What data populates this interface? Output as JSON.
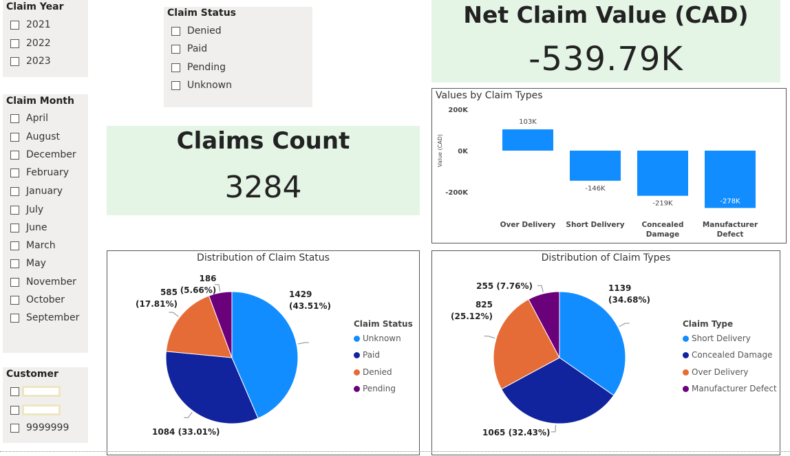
{
  "slicers": {
    "year": {
      "title": "Claim Year",
      "options": [
        "2021",
        "2022",
        "2023"
      ]
    },
    "status": {
      "title": "Claim Status",
      "options": [
        "Denied",
        "Paid",
        "Pending",
        "Unknown"
      ]
    },
    "month": {
      "title": "Claim Month",
      "options": [
        "April",
        "August",
        "December",
        "February",
        "January",
        "July",
        "June",
        "March",
        "May",
        "November",
        "October",
        "September"
      ]
    },
    "customer": {
      "title": "Customer",
      "options": [
        "",
        "",
        "9999999"
      ]
    }
  },
  "cards": {
    "claims_count": {
      "title": "Claims Count",
      "value": "3284"
    },
    "net_value": {
      "title": "Net Claim Value (CAD)",
      "value": "-539.79K"
    }
  },
  "colors": {
    "blue": "#118dff",
    "navy": "#12239e",
    "orange": "#e66c37",
    "purple": "#6b007b",
    "card_bg": "#e4f4e5",
    "slicer_bg": "#f0efed"
  },
  "chart_data": [
    {
      "type": "bar",
      "title": "Values by Claim Types",
      "xlabel": "",
      "ylabel": "Value (CAD)",
      "categories": [
        "Over Delivery",
        "Short Delivery",
        "Concealed Damage",
        "Manufacturer Defect"
      ],
      "values": [
        103000,
        -146000,
        -219000,
        -278000
      ],
      "data_labels": [
        "103K",
        "-146K",
        "-219K",
        "-278K"
      ],
      "yticks": [
        "200K",
        "0K",
        "-200K"
      ],
      "ylim": [
        -300000,
        200000
      ],
      "color": "#118dff"
    },
    {
      "type": "pie",
      "title": "Distribution of Claim Status",
      "legend_title": "Claim Status",
      "legend_position": "right",
      "categories": [
        "Unknown",
        "Paid",
        "Denied",
        "Pending"
      ],
      "values": [
        1429,
        1084,
        585,
        186
      ],
      "percent_labels": [
        "43.51%",
        "33.01%",
        "17.81%",
        "5.66%"
      ],
      "colors": [
        "#118dff",
        "#12239e",
        "#e66c37",
        "#6b007b"
      ]
    },
    {
      "type": "pie",
      "title": "Distribution of Claim Types",
      "legend_title": "Claim Type",
      "legend_position": "right",
      "categories": [
        "Short Delivery",
        "Concealed Damage",
        "Over Delivery",
        "Manufacturer Defect"
      ],
      "values": [
        1139,
        1065,
        825,
        255
      ],
      "percent_labels": [
        "34.68%",
        "32.43%",
        "25.12%",
        "7.76%"
      ],
      "colors": [
        "#118dff",
        "#12239e",
        "#e66c37",
        "#6b007b"
      ]
    }
  ]
}
